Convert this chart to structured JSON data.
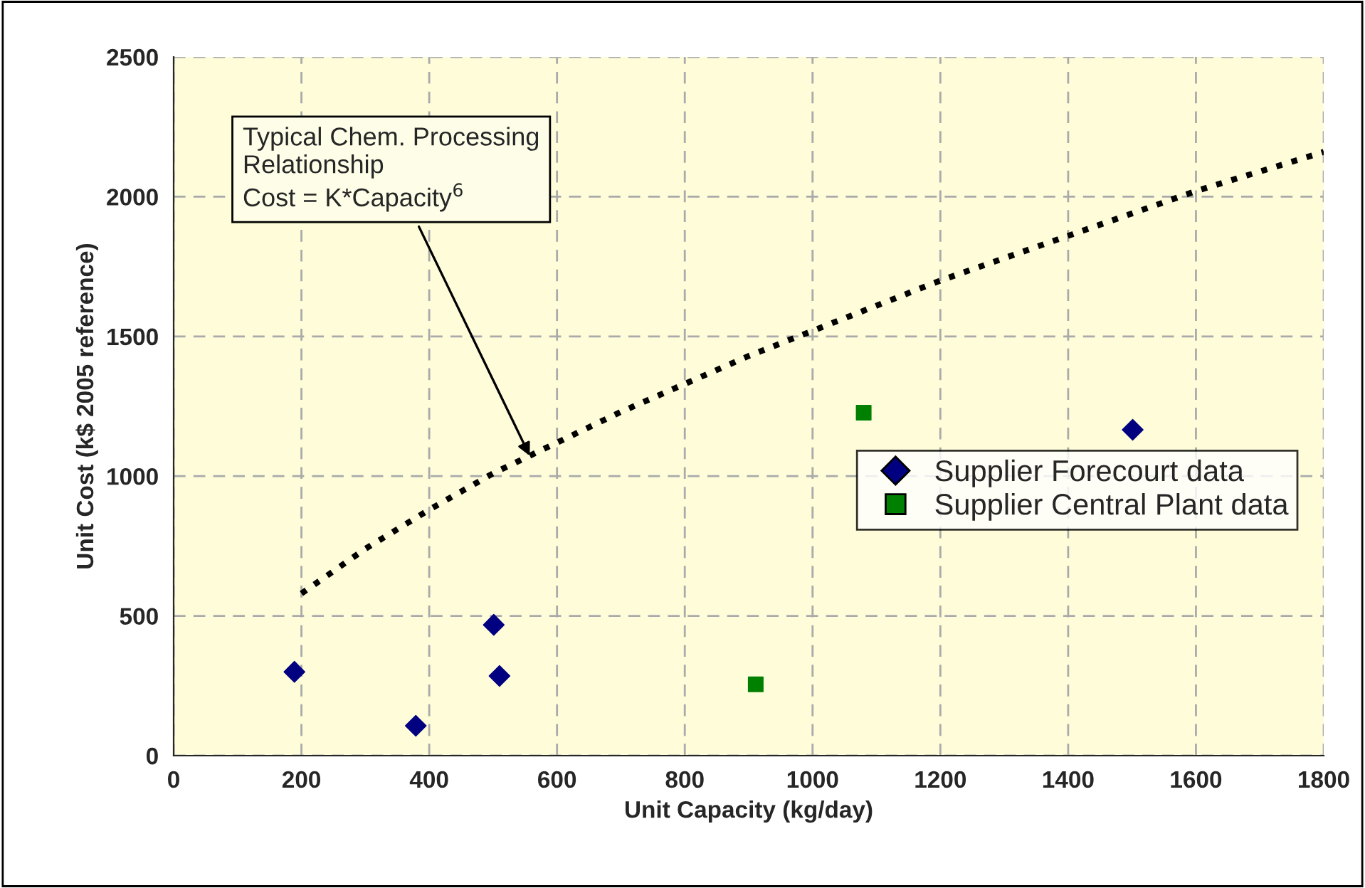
{
  "chart_data": {
    "type": "scatter",
    "xlabel": "Unit Capacity (kg/day)",
    "ylabel": "Unit Cost (k$ 2005 reference)",
    "xlim": [
      0,
      1800
    ],
    "xticks": [
      0,
      200,
      400,
      600,
      800,
      1000,
      1200,
      1400,
      1600,
      1800
    ],
    "ylim": [
      0,
      2500
    ],
    "yticks": [
      0,
      500,
      1000,
      1500,
      2000,
      2500
    ],
    "grid": true,
    "legend": "right",
    "series": [
      {
        "name": "Supplier Forecourt data",
        "color": "#000080",
        "marker": "diamond",
        "x": [
          189,
          379,
          501,
          510,
          1501
        ],
        "values": [
          300,
          107,
          468,
          285,
          1166
        ]
      },
      {
        "name": "Supplier Central Plant data",
        "color": "#008000",
        "marker": "square",
        "x": [
          911,
          1080
        ],
        "values": [
          255,
          1227
        ]
      },
      {
        "type": "line",
        "color": "#000000",
        "marker": "none",
        "line_style": "dotted",
        "x": [
          200,
          300,
          400,
          500,
          600,
          700,
          800,
          900,
          1000,
          1100,
          1200,
          1300,
          1400,
          1500,
          1600,
          1700,
          1800
        ],
        "values": [
          580,
          740,
          880,
          1010,
          1120,
          1230,
          1330,
          1430,
          1520,
          1610,
          1700,
          1780,
          1860,
          1940,
          2020,
          2090,
          2160
        ]
      }
    ],
    "annotations": [
      {
        "text": "Typical Chem. Processing\nRelationship\nCost = K*Capacity$^{6}$",
        "x": 560,
        "y": 1060
      }
    ]
  }
}
